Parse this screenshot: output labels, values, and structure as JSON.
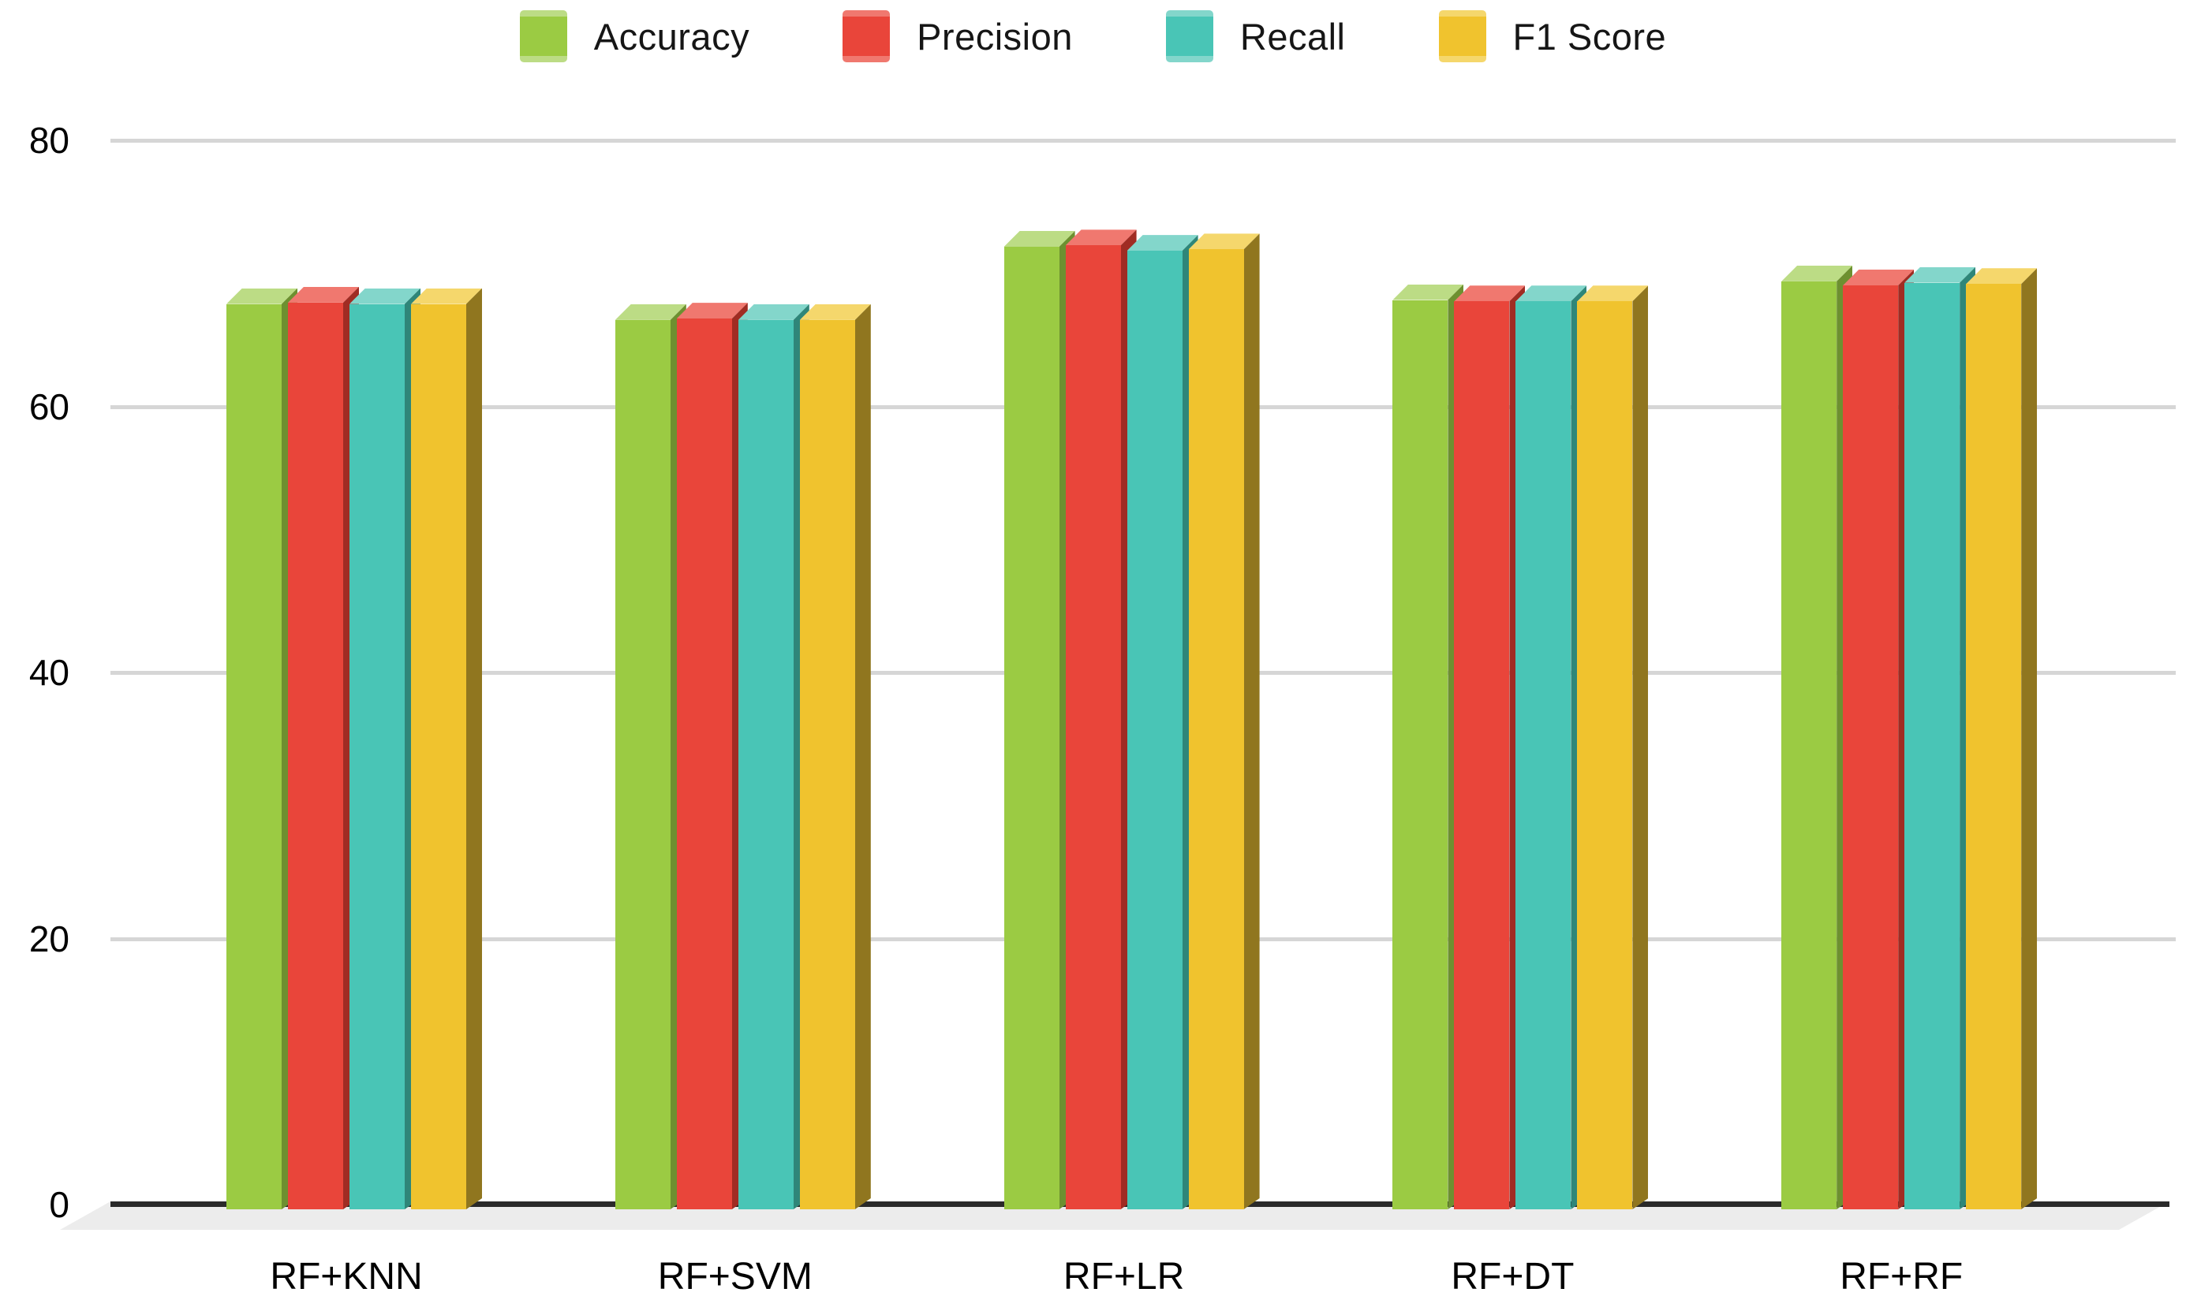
{
  "chart_data": {
    "type": "bar",
    "style": "3d-column",
    "title": "",
    "xlabel": "",
    "ylabel": "",
    "categories": [
      "RF+KNN",
      "RF+SVM",
      "RF+LR",
      "RF+DT",
      "RF+RF"
    ],
    "series": [
      {
        "name": "Accuracy",
        "color": "#9BCB43",
        "color_top": "#BCDC85",
        "color_side": "#6D9030",
        "values": [
          67.7,
          66.5,
          72.0,
          68.0,
          69.4
        ]
      },
      {
        "name": "Precision",
        "color": "#E9453A",
        "color_top": "#F0786F",
        "color_side": "#A02C23",
        "values": [
          67.8,
          66.6,
          72.1,
          67.9,
          69.1
        ]
      },
      {
        "name": "Recall",
        "color": "#49C5B6",
        "color_top": "#83D6CB",
        "color_side": "#2F8679",
        "values": [
          67.7,
          66.5,
          71.7,
          67.9,
          69.3
        ]
      },
      {
        "name": "F1 Score",
        "color": "#F0C32E",
        "color_top": "#F5D76C",
        "color_side": "#90761F",
        "values": [
          67.7,
          66.5,
          71.8,
          67.9,
          69.2
        ]
      }
    ],
    "ylim": [
      0,
      80
    ],
    "yticks": [
      0,
      20,
      40,
      60,
      80
    ],
    "grid": true,
    "legend_position": "top"
  },
  "colors": {
    "background": "#FFFFFF",
    "axis_line": "#2A2A2A",
    "gridline": "#D6D6D6",
    "floor": "#ECECEC",
    "text": "#000000"
  }
}
